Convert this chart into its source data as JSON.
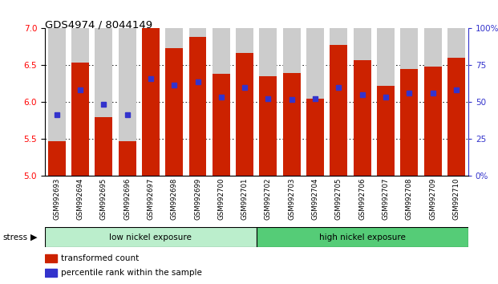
{
  "title": "GDS4974 / 8044149",
  "samples": [
    "GSM992693",
    "GSM992694",
    "GSM992695",
    "GSM992696",
    "GSM992697",
    "GSM992698",
    "GSM992699",
    "GSM992700",
    "GSM992701",
    "GSM992702",
    "GSM992703",
    "GSM992704",
    "GSM992705",
    "GSM992706",
    "GSM992707",
    "GSM992708",
    "GSM992709",
    "GSM992710"
  ],
  "bar_heights": [
    5.47,
    6.54,
    5.8,
    5.47,
    7.0,
    6.73,
    6.88,
    6.38,
    6.67,
    6.35,
    6.4,
    6.05,
    6.78,
    6.57,
    6.22,
    6.45,
    6.48,
    6.6
  ],
  "blue_marker_y": [
    5.83,
    6.17,
    5.97,
    5.83,
    6.32,
    6.23,
    6.28,
    6.07,
    6.2,
    6.05,
    6.04,
    6.05,
    6.2,
    6.1,
    6.07,
    6.12,
    6.12,
    6.17
  ],
  "group1_label": "low nickel exposure",
  "group2_label": "high nickel exposure",
  "group1_count": 9,
  "group2_count": 9,
  "stress_label": "stress",
  "ymin": 5.0,
  "ymax": 7.0,
  "yticks": [
    5.0,
    5.5,
    6.0,
    6.5,
    7.0
  ],
  "right_yticks": [
    0,
    25,
    50,
    75,
    100
  ],
  "right_ytick_labels": [
    "0%",
    "25",
    "50",
    "75",
    "100%"
  ],
  "bar_color": "#cc2200",
  "blue_color": "#3333cc",
  "group1_bg": "#bbeecc",
  "group2_bg": "#55cc77",
  "bar_bg": "#cccccc",
  "legend_red": "transformed count",
  "legend_blue": "percentile rank within the sample"
}
